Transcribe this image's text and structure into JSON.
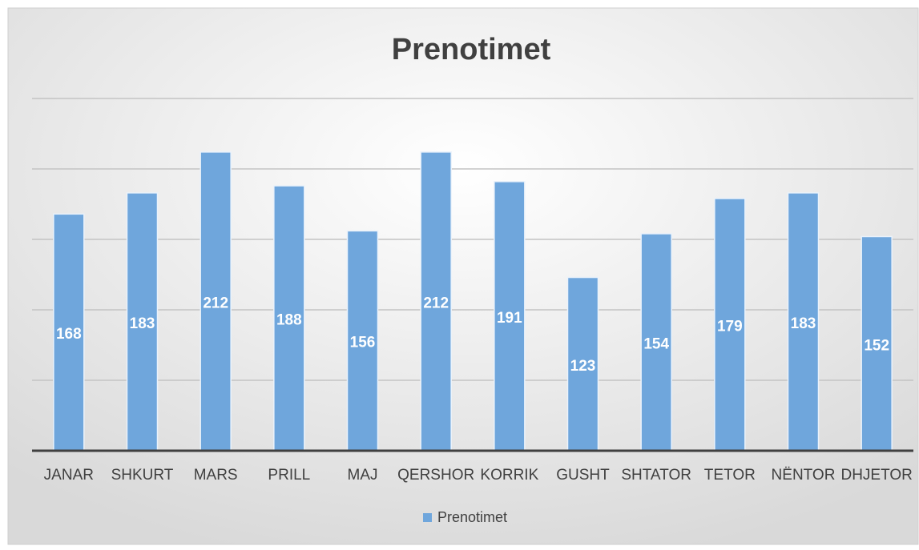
{
  "chart_data": {
    "type": "bar",
    "title": "Prenotimet",
    "categories": [
      "JANAR",
      "SHKURT",
      "MARS",
      "PRILL",
      "MAJ",
      "QERSHOR",
      "KORRIK",
      "GUSHT",
      "SHTATOR",
      "TETOR",
      "NËNTOR",
      "DHJETOR"
    ],
    "series": [
      {
        "name": "Prenotimet",
        "color": "#6fa6dc",
        "values": [
          168,
          183,
          212,
          188,
          156,
          212,
          191,
          123,
          154,
          179,
          183,
          152
        ]
      }
    ],
    "ylim": [
      0,
      250
    ],
    "yticks": [
      0,
      50,
      100,
      150,
      200,
      250
    ],
    "grid": true,
    "legend": "bottom"
  }
}
